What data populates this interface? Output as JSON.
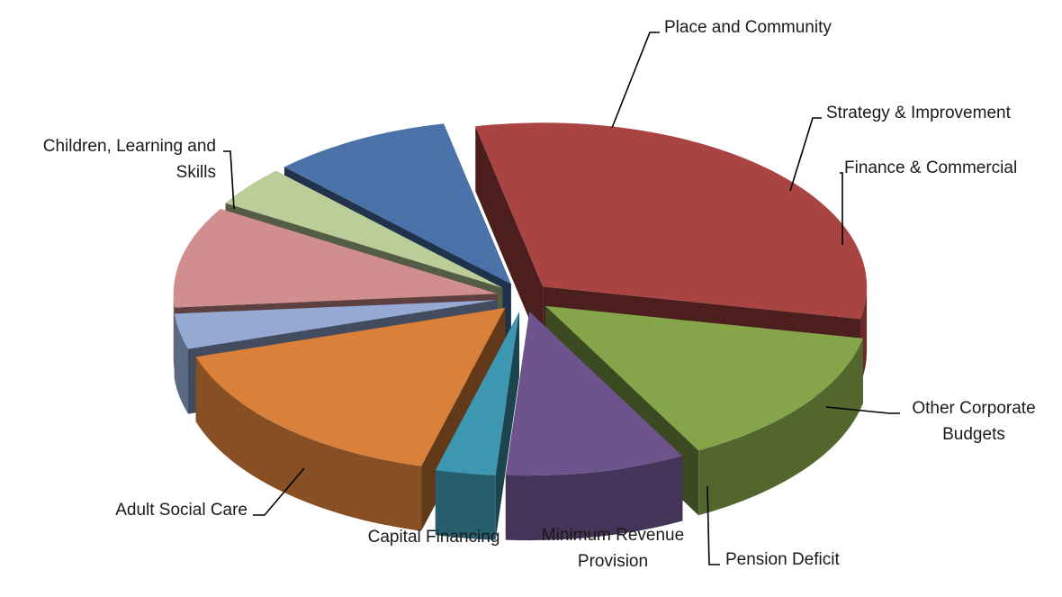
{
  "chart_data": {
    "type": "pie",
    "style": "3d-exploded",
    "slices": [
      {
        "label": "Children, Learning and Skills",
        "label_lines": [
          "Children, Learning and",
          "Skills"
        ],
        "value": 31.5,
        "color": "#A94442"
      },
      {
        "label": "Place and Community",
        "label_lines": [
          "Place and Community"
        ],
        "value": 14.0,
        "color": "#86A44A"
      },
      {
        "label": "Strategy & Improvement",
        "label_lines": [
          "Strategy & Improvement"
        ],
        "value": 9.0,
        "color": "#6E548D"
      },
      {
        "label": "Finance & Commercial",
        "label_lines": [
          "Finance & Commercial"
        ],
        "value": 3.0,
        "color": "#3E97B0"
      },
      {
        "label": "Other Corporate Budgets",
        "label_lines": [
          "Other Corporate",
          "Budgets"
        ],
        "value": 16.0,
        "color": "#D9803A"
      },
      {
        "label": "Pension Deficit",
        "label_lines": [
          "Pension Deficit"
        ],
        "value": 3.5,
        "color": "#95A9D3"
      },
      {
        "label": "Minimum Revenue Provision",
        "label_lines": [
          "Minimum Revenue",
          "Provision"
        ],
        "value": 10.0,
        "color": "#D08F8E"
      },
      {
        "label": "Capital Financing",
        "label_lines": [
          "Capital Financing"
        ],
        "value": 4.0,
        "color": "#BBCD99"
      },
      {
        "label": "Adult Social Care",
        "label_lines": [
          "Adult Social Care"
        ],
        "value": 9.0,
        "color": "#4A71A8"
      }
    ],
    "title": "",
    "legend": "none"
  }
}
